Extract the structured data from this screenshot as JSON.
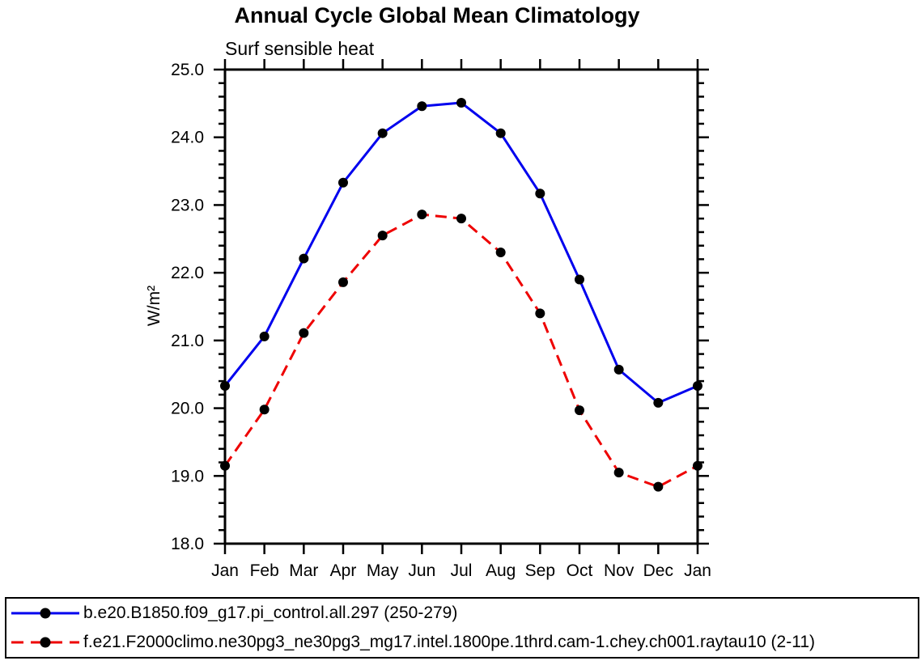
{
  "title": "Annual Cycle Global Mean Climatology",
  "chart_data": {
    "type": "line",
    "title": "Annual Cycle Global Mean Climatology",
    "subtitle": "Surf sensible heat",
    "ylabel": "W/m²",
    "xlabel": "",
    "ylim": [
      18.0,
      25.0
    ],
    "y_major_step": 1.0,
    "y_minor_step": 0.2,
    "y_tick_labels": [
      "18.0",
      "19.0",
      "20.0",
      "21.0",
      "22.0",
      "23.0",
      "24.0",
      "25.0"
    ],
    "categories": [
      "Jan",
      "Feb",
      "Mar",
      "Apr",
      "May",
      "Jun",
      "Jul",
      "Aug",
      "Sep",
      "Oct",
      "Nov",
      "Dec",
      "Jan"
    ],
    "grid": false,
    "legend_position": "bottom",
    "series": [
      {
        "name": "b.e20.B1850.f09_g17.pi_control.all.297 (250-279)",
        "color": "#0000ee",
        "line_style": "solid",
        "marker": "circle",
        "marker_color": "#000000",
        "values": [
          20.33,
          21.06,
          22.21,
          23.33,
          24.06,
          24.46,
          24.51,
          24.06,
          23.17,
          21.9,
          20.57,
          20.08,
          20.33
        ]
      },
      {
        "name": "f.e21.F2000climo.ne30pg3_ne30pg3_mg17.intel.1800pe.1thrd.cam-1.chey.ch001.raytau10 (2-11)",
        "color": "#ee0000",
        "line_style": "dashed",
        "marker": "circle",
        "marker_color": "#000000",
        "values": [
          19.15,
          19.98,
          21.11,
          21.86,
          22.55,
          22.86,
          22.8,
          22.3,
          21.4,
          19.97,
          19.05,
          18.84,
          19.15
        ]
      }
    ]
  }
}
